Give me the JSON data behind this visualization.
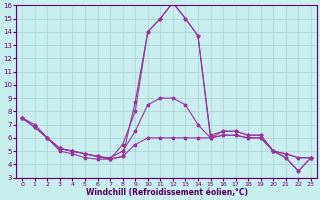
{
  "xlabel": "Windchill (Refroidissement éolien,°C)",
  "xlim": [
    -0.5,
    23.5
  ],
  "ylim": [
    3,
    16
  ],
  "yticks": [
    3,
    4,
    5,
    6,
    7,
    8,
    9,
    10,
    11,
    12,
    13,
    14,
    15,
    16
  ],
  "xticks": [
    0,
    1,
    2,
    3,
    4,
    5,
    6,
    7,
    8,
    9,
    10,
    11,
    12,
    13,
    14,
    15,
    16,
    17,
    18,
    19,
    20,
    21,
    22,
    23
  ],
  "background_color": "#c8eef0",
  "grid_color": "#b0d8dc",
  "line_color": "#993399",
  "series": [
    [
      7.5,
      7.0,
      6.0,
      5.0,
      4.8,
      4.5,
      4.4,
      4.4,
      4.6,
      8.7,
      14.0,
      15.0,
      16.2,
      15.0,
      13.7,
      6.2,
      6.5,
      6.5,
      6.2,
      6.2,
      5.0,
      4.5,
      3.5,
      4.5
    ],
    [
      7.5,
      6.8,
      6.0,
      5.2,
      5.0,
      4.8,
      4.6,
      4.4,
      5.5,
      8.0,
      14.0,
      15.0,
      16.2,
      15.0,
      13.7,
      6.0,
      6.5,
      6.5,
      6.2,
      6.2,
      5.0,
      4.5,
      3.5,
      4.5
    ],
    [
      7.5,
      6.8,
      6.0,
      5.2,
      5.0,
      4.8,
      4.6,
      4.5,
      5.0,
      6.5,
      8.5,
      9.0,
      9.0,
      8.5,
      7.0,
      6.0,
      6.2,
      6.2,
      6.0,
      6.0,
      5.0,
      4.8,
      4.5,
      4.5
    ],
    [
      7.5,
      6.8,
      6.0,
      5.2,
      5.0,
      4.8,
      4.6,
      4.4,
      4.6,
      5.5,
      6.0,
      6.0,
      6.0,
      6.0,
      6.0,
      6.0,
      6.2,
      6.2,
      6.0,
      6.0,
      5.0,
      4.8,
      4.5,
      4.5
    ]
  ]
}
